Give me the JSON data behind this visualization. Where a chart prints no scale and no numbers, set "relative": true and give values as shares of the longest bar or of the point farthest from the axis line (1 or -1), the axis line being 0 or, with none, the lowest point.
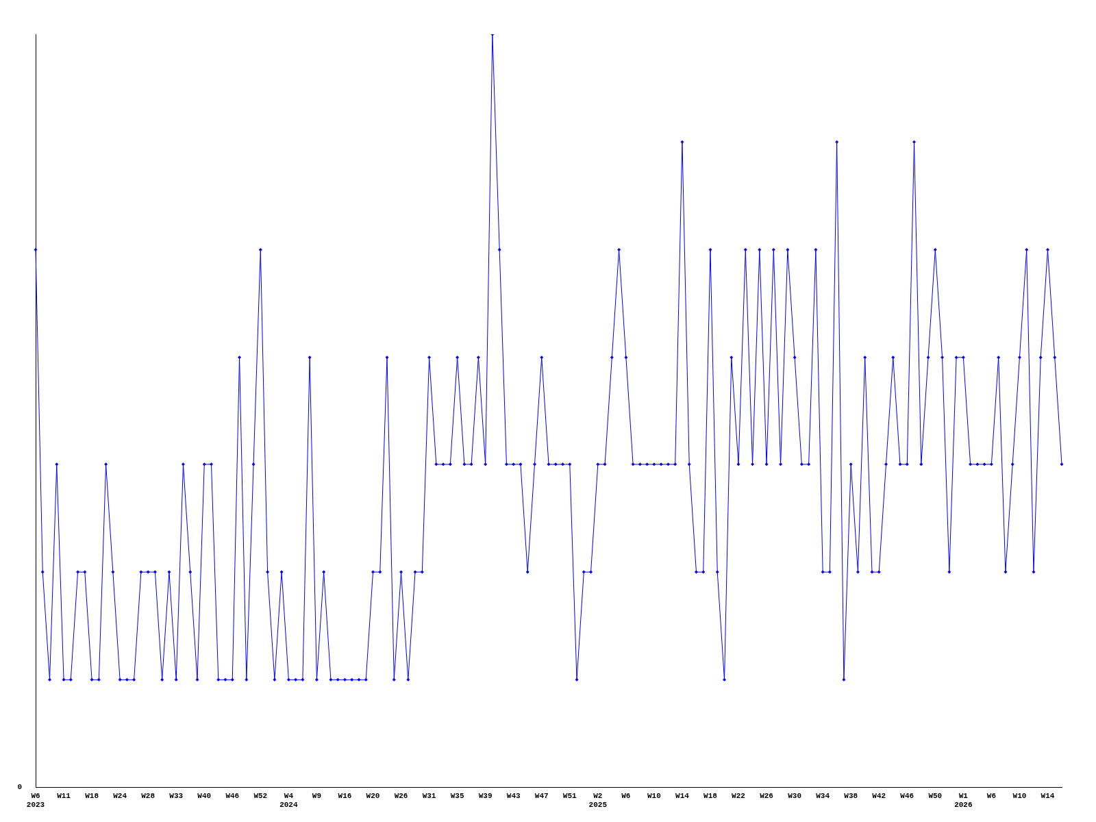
{
  "chart_data": {
    "type": "line",
    "relative": true,
    "color": "#0000ff",
    "marker": "diamond",
    "grid": false,
    "legend": false,
    "annotations": [
      "0"
    ],
    "categories": [
      "W6\n2023",
      null,
      null,
      null,
      "W11",
      null,
      null,
      null,
      "W18",
      null,
      null,
      null,
      "W24",
      null,
      null,
      null,
      "W28",
      null,
      null,
      null,
      "W33",
      null,
      null,
      null,
      "W40",
      null,
      null,
      null,
      "W46",
      null,
      null,
      null,
      "W52",
      null,
      null,
      null,
      "W4\n2024",
      null,
      null,
      null,
      "W9",
      null,
      null,
      null,
      "W16",
      null,
      null,
      null,
      "W20",
      null,
      null,
      null,
      "W26",
      null,
      null,
      null,
      "W31",
      null,
      null,
      null,
      "W35",
      null,
      null,
      null,
      "W39",
      null,
      null,
      null,
      "W43",
      null,
      null,
      null,
      "W47",
      null,
      null,
      null,
      "W51",
      null,
      null,
      null,
      "W2\n2025",
      null,
      null,
      null,
      "W6",
      null,
      null,
      null,
      "W10",
      null,
      null,
      null,
      "W14",
      null,
      null,
      null,
      "W18",
      null,
      null,
      null,
      "W22",
      null,
      null,
      null,
      "W26",
      null,
      null,
      null,
      "W30",
      null,
      null,
      null,
      "W34",
      null,
      null,
      null,
      "W38",
      null,
      null,
      null,
      "W42",
      null,
      null,
      null,
      "W46",
      null,
      null,
      null,
      "W50",
      null,
      null,
      null,
      "W1\n2026",
      null,
      null,
      null,
      "W6",
      null,
      null,
      null,
      "W10",
      null,
      null,
      null,
      "W14",
      null,
      null
    ],
    "values": [
      0.714,
      0.286,
      0.143,
      0.429,
      0.143,
      0.143,
      0.286,
      0.286,
      0.143,
      0.143,
      0.429,
      0.286,
      0.143,
      0.143,
      0.143,
      0.286,
      0.286,
      0.286,
      0.143,
      0.286,
      0.143,
      0.429,
      0.286,
      0.143,
      0.429,
      0.429,
      0.143,
      0.143,
      0.143,
      0.571,
      0.143,
      0.429,
      0.714,
      0.286,
      0.143,
      0.286,
      0.143,
      0.143,
      0.143,
      0.571,
      0.143,
      0.286,
      0.143,
      0.143,
      0.143,
      0.143,
      0.143,
      0.143,
      0.286,
      0.286,
      0.571,
      0.143,
      0.286,
      0.143,
      0.286,
      0.286,
      0.571,
      0.429,
      0.429,
      0.429,
      0.571,
      0.429,
      0.429,
      0.571,
      0.429,
      1,
      0.714,
      0.429,
      0.429,
      0.429,
      0.286,
      0.429,
      0.571,
      0.429,
      0.429,
      0.429,
      0.429,
      0.143,
      0.286,
      0.286,
      0.429,
      0.429,
      0.571,
      0.714,
      0.571,
      0.429,
      0.429,
      0.429,
      0.429,
      0.429,
      0.429,
      0.429,
      0.857,
      0.429,
      0.286,
      0.286,
      0.714,
      0.286,
      0.143,
      0.571,
      0.429,
      0.714,
      0.429,
      0.714,
      0.429,
      0.714,
      0.429,
      0.714,
      0.571,
      0.429,
      0.429,
      0.714,
      0.286,
      0.286,
      0.857,
      0.143,
      0.429,
      0.286,
      0.571,
      0.286,
      0.286,
      0.429,
      0.571,
      0.429,
      0.429,
      0.857,
      0.429,
      0.571,
      0.714,
      0.571,
      0.286,
      0.571,
      0.571,
      0.429,
      0.429,
      0.429,
      0.429,
      0.571,
      0.286,
      0.429,
      0.571,
      0.714,
      0.286,
      0.571,
      0.714,
      0.571,
      0.429
    ]
  }
}
